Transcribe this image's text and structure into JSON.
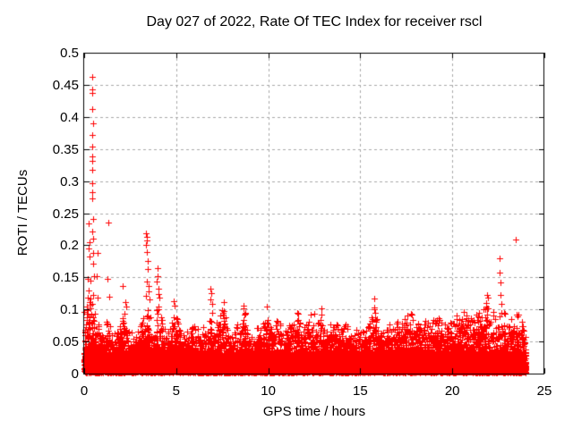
{
  "chart_data": {
    "type": "scatter",
    "title": "Day 027 of 2022, Rate Of TEC Index for receiver rscl",
    "xlabel": "GPS time / hours",
    "ylabel": "ROTI / TECUs",
    "xlim": [
      0,
      25
    ],
    "ylim": [
      0,
      0.5
    ],
    "x_ticks": [
      {
        "value": 0,
        "label": "0"
      },
      {
        "value": 5,
        "label": "5"
      },
      {
        "value": 10,
        "label": "10"
      },
      {
        "value": 15,
        "label": "15"
      },
      {
        "value": 20,
        "label": "20"
      },
      {
        "value": 25,
        "label": "25"
      }
    ],
    "y_ticks": [
      {
        "value": 0,
        "label": "0"
      },
      {
        "value": 0.05,
        "label": "0.05"
      },
      {
        "value": 0.1,
        "label": "0.1"
      },
      {
        "value": 0.15,
        "label": "0.15"
      },
      {
        "value": 0.2,
        "label": "0.2"
      },
      {
        "value": 0.25,
        "label": "0.25"
      },
      {
        "value": 0.3,
        "label": "0.3"
      },
      {
        "value": 0.35,
        "label": "0.35"
      },
      {
        "value": 0.4,
        "label": "0.4"
      },
      {
        "value": 0.45,
        "label": "0.45"
      },
      {
        "value": 0.5,
        "label": "0.5"
      }
    ],
    "grid": true,
    "legend": null,
    "marker": {
      "shape": "plus",
      "size": 7,
      "color": "#ff0000"
    },
    "colors": {
      "marker": "#ff0000",
      "grid": "#a8a8a8",
      "axis": "#000000",
      "background": "#ffffff"
    },
    "data_span_hours": [
      0,
      24
    ],
    "outliers": [
      [
        0.46,
        0.462
      ],
      [
        0.45,
        0.443
      ],
      [
        0.46,
        0.437
      ],
      [
        0.45,
        0.412
      ],
      [
        0.47,
        0.39
      ],
      [
        0.46,
        0.372
      ],
      [
        0.46,
        0.354
      ],
      [
        0.45,
        0.339
      ],
      [
        0.46,
        0.332
      ],
      [
        0.46,
        0.318
      ],
      [
        0.46,
        0.297
      ],
      [
        0.44,
        0.283
      ],
      [
        0.45,
        0.273
      ],
      [
        0.5,
        0.241
      ],
      [
        0.46,
        0.222
      ],
      [
        0.47,
        0.211
      ],
      [
        0.49,
        0.188
      ],
      [
        0.47,
        0.171
      ],
      [
        0.52,
        0.152
      ],
      [
        0.48,
        0.123
      ],
      [
        0.45,
        0.109
      ],
      [
        0.25,
        0.234
      ],
      [
        0.28,
        0.205
      ],
      [
        0.22,
        0.195
      ],
      [
        0.3,
        0.183
      ],
      [
        0.18,
        0.148
      ],
      [
        0.35,
        0.145
      ],
      [
        0.24,
        0.13
      ],
      [
        0.2,
        0.118
      ],
      [
        0.15,
        0.104
      ],
      [
        0.32,
        0.102
      ],
      [
        0.72,
        0.188
      ],
      [
        0.7,
        0.152
      ],
      [
        0.74,
        0.118
      ],
      [
        1.31,
        0.236
      ],
      [
        1.28,
        0.148
      ],
      [
        1.35,
        0.12
      ],
      [
        2.08,
        0.137
      ],
      [
        2.24,
        0.112
      ],
      [
        2.28,
        0.105
      ],
      [
        3.38,
        0.218
      ],
      [
        3.42,
        0.213
      ],
      [
        3.4,
        0.207
      ],
      [
        3.38,
        0.201
      ],
      [
        3.42,
        0.189
      ],
      [
        3.44,
        0.176
      ],
      [
        3.46,
        0.163
      ],
      [
        3.4,
        0.144
      ],
      [
        3.48,
        0.137
      ],
      [
        3.52,
        0.128
      ],
      [
        3.36,
        0.121
      ],
      [
        3.55,
        0.115
      ],
      [
        3.98,
        0.165
      ],
      [
        4.0,
        0.152
      ],
      [
        3.96,
        0.143
      ],
      [
        4.02,
        0.133
      ],
      [
        4.05,
        0.124
      ],
      [
        4.08,
        0.118
      ],
      [
        4.88,
        0.113
      ],
      [
        4.92,
        0.106
      ],
      [
        6.86,
        0.133
      ],
      [
        6.9,
        0.126
      ],
      [
        6.88,
        0.115
      ],
      [
        6.94,
        0.108
      ],
      [
        7.58,
        0.112
      ],
      [
        8.68,
        0.106
      ],
      [
        9.9,
        0.104
      ],
      [
        12.88,
        0.102
      ],
      [
        15.74,
        0.117
      ],
      [
        15.78,
        0.103
      ],
      [
        21.88,
        0.123
      ],
      [
        21.92,
        0.119
      ],
      [
        22.55,
        0.179
      ],
      [
        22.57,
        0.158
      ],
      [
        22.6,
        0.142
      ],
      [
        22.62,
        0.123
      ],
      [
        22.65,
        0.108
      ],
      [
        23.43,
        0.209
      ]
    ],
    "band_envelope": [
      [
        0,
        0.095
      ],
      [
        0.15,
        0.11
      ],
      [
        0.3,
        0.12
      ],
      [
        0.5,
        0.1
      ],
      [
        0.7,
        0.085
      ],
      [
        0.9,
        0.06
      ],
      [
        1.1,
        0.075
      ],
      [
        1.3,
        0.09
      ],
      [
        1.5,
        0.06
      ],
      [
        1.75,
        0.07
      ],
      [
        2.0,
        0.08
      ],
      [
        2.2,
        0.105
      ],
      [
        2.4,
        0.07
      ],
      [
        2.6,
        0.065
      ],
      [
        2.8,
        0.075
      ],
      [
        3.0,
        0.07
      ],
      [
        3.2,
        0.09
      ],
      [
        3.4,
        0.115
      ],
      [
        3.6,
        0.09
      ],
      [
        3.8,
        0.08
      ],
      [
        4.0,
        0.11
      ],
      [
        4.2,
        0.09
      ],
      [
        4.4,
        0.075
      ],
      [
        4.6,
        0.07
      ],
      [
        4.9,
        0.105
      ],
      [
        5.1,
        0.085
      ],
      [
        5.3,
        0.06
      ],
      [
        5.5,
        0.07
      ],
      [
        5.7,
        0.065
      ],
      [
        5.9,
        0.075
      ],
      [
        6.1,
        0.085
      ],
      [
        6.3,
        0.07
      ],
      [
        6.5,
        0.075
      ],
      [
        6.7,
        0.08
      ],
      [
        6.9,
        0.115
      ],
      [
        7.1,
        0.08
      ],
      [
        7.35,
        0.09
      ],
      [
        7.6,
        0.105
      ],
      [
        7.8,
        0.07
      ],
      [
        8.0,
        0.065
      ],
      [
        8.2,
        0.075
      ],
      [
        8.45,
        0.08
      ],
      [
        8.7,
        0.105
      ],
      [
        8.9,
        0.075
      ],
      [
        9.1,
        0.065
      ],
      [
        9.35,
        0.07
      ],
      [
        9.6,
        0.08
      ],
      [
        9.9,
        0.105
      ],
      [
        10.1,
        0.075
      ],
      [
        10.3,
        0.08
      ],
      [
        10.55,
        0.09
      ],
      [
        10.8,
        0.065
      ],
      [
        11.0,
        0.07
      ],
      [
        11.25,
        0.08
      ],
      [
        11.55,
        0.1
      ],
      [
        11.8,
        0.075
      ],
      [
        12.0,
        0.08
      ],
      [
        12.2,
        0.09
      ],
      [
        12.45,
        0.1
      ],
      [
        12.7,
        0.08
      ],
      [
        12.9,
        0.1
      ],
      [
        13.1,
        0.075
      ],
      [
        13.35,
        0.08
      ],
      [
        13.6,
        0.085
      ],
      [
        13.85,
        0.07
      ],
      [
        14.1,
        0.075
      ],
      [
        14.35,
        0.08
      ],
      [
        14.6,
        0.07
      ],
      [
        14.85,
        0.075
      ],
      [
        15.1,
        0.065
      ],
      [
        15.35,
        0.07
      ],
      [
        15.55,
        0.08
      ],
      [
        15.76,
        0.105
      ],
      [
        16.0,
        0.075
      ],
      [
        16.25,
        0.07
      ],
      [
        16.5,
        0.08
      ],
      [
        16.75,
        0.075
      ],
      [
        17.0,
        0.085
      ],
      [
        17.25,
        0.08
      ],
      [
        17.5,
        0.09
      ],
      [
        17.75,
        0.095
      ],
      [
        18.0,
        0.085
      ],
      [
        18.25,
        0.08
      ],
      [
        18.5,
        0.09
      ],
      [
        18.75,
        0.08
      ],
      [
        19.0,
        0.085
      ],
      [
        19.25,
        0.09
      ],
      [
        19.5,
        0.08
      ],
      [
        19.75,
        0.09
      ],
      [
        20.0,
        0.085
      ],
      [
        20.2,
        0.09
      ],
      [
        20.45,
        0.095
      ],
      [
        20.7,
        0.103
      ],
      [
        20.9,
        0.085
      ],
      [
        21.1,
        0.09
      ],
      [
        21.35,
        0.095
      ],
      [
        21.6,
        0.1
      ],
      [
        21.85,
        0.115
      ],
      [
        22.05,
        0.09
      ],
      [
        22.25,
        0.1
      ],
      [
        22.45,
        0.105
      ],
      [
        22.65,
        0.108
      ],
      [
        22.85,
        0.095
      ],
      [
        23.05,
        0.085
      ],
      [
        23.25,
        0.09
      ],
      [
        23.45,
        0.095
      ],
      [
        23.65,
        0.09
      ],
      [
        23.85,
        0.08
      ],
      [
        24.0,
        0.055
      ]
    ],
    "base_band": {
      "solid_max": 0.035,
      "description": "Dense quasi-solid band of ROTI values between 0 and ~0.035 TECUs across all 24 h, with spiky columns reaching the band_envelope values."
    },
    "synth": {
      "seed": 20220127,
      "columns": 2400
    }
  }
}
